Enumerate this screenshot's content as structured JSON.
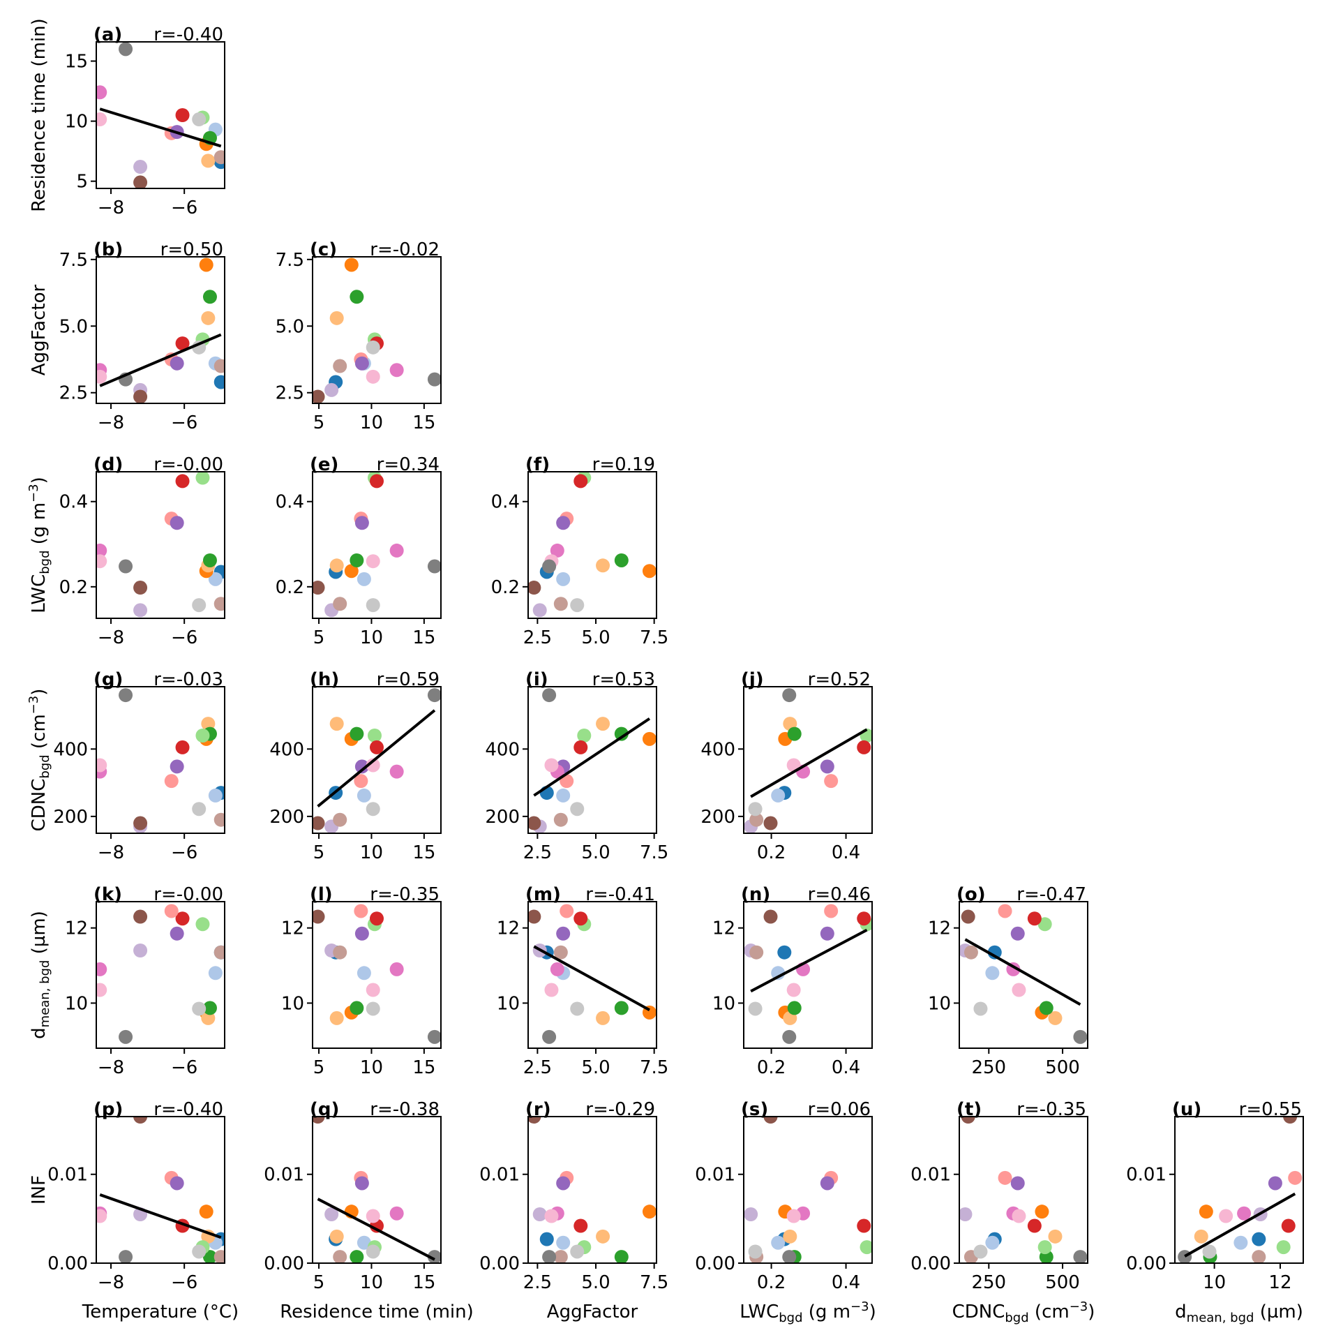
{
  "figure": {
    "variables": [
      {
        "key": "T",
        "label": "Temperature (°C)",
        "ticks": [
          -8,
          -6
        ],
        "tick_labels": [
          "−8",
          "−6"
        ],
        "range": [
          -8.4,
          -4.9
        ]
      },
      {
        "key": "RT",
        "label": "Residence time (min)",
        "ticks": [
          5,
          10,
          15
        ],
        "tick_labels": [
          "5",
          "10",
          "15"
        ],
        "range": [
          4.4,
          16.6
        ]
      },
      {
        "key": "AGG",
        "label": "AggFactor",
        "ticks": [
          2.5,
          5.0,
          7.5
        ],
        "tick_labels": [
          "2.5",
          "5.0",
          "7.5"
        ],
        "range": [
          2.1,
          7.6
        ]
      },
      {
        "key": "LWC",
        "label": "LWC",
        "label_sub": "bgd",
        "label_tail": " (g m",
        "label_sup": "−3",
        "label_end": ")",
        "ticks": [
          0.2,
          0.4
        ],
        "tick_labels": [
          "0.2",
          "0.4"
        ],
        "range": [
          0.126,
          0.47
        ]
      },
      {
        "key": "CDNC",
        "label": "CDNC",
        "label_sub": "bgd",
        "label_tail": " (cm",
        "label_sup": "−3",
        "label_end": ")",
        "ticks": [
          200,
          400
        ],
        "tick_labels": [
          "200",
          "400"
        ],
        "range": [
          150,
          585
        ]
      },
      {
        "key": "DMEAN",
        "label": "d",
        "label_sub": "mean, bgd",
        "label_tail": " (µm)",
        "ticks": [
          10,
          12
        ],
        "tick_labels": [
          "10",
          "12"
        ],
        "range": [
          8.8,
          12.7
        ]
      },
      {
        "key": "INF",
        "label": "INF",
        "ticks": [
          0.0,
          0.01
        ],
        "tick_labels": [
          "0.00",
          "0.01"
        ],
        "range": [
          0.0,
          0.0165
        ]
      }
    ],
    "x_overrides": {
      "CDNC": {
        "ticks": [
          250,
          500
        ],
        "tick_labels": [
          "250",
          "500"
        ]
      },
      "DMEAN": {
        "ticks": [
          10,
          12
        ],
        "tick_labels": [
          "10",
          "12"
        ]
      }
    }
  },
  "chart_data": {
    "type": "scatter",
    "title": "",
    "points": [
      {
        "color": "#1f77b4",
        "T": -5.0,
        "RT": 6.6,
        "AGG": 2.9,
        "LWC": 0.235,
        "CDNC": 270,
        "DMEAN": 11.35,
        "INF": 0.0027
      },
      {
        "color": "#aec7e8",
        "T": -5.15,
        "RT": 9.3,
        "AGG": 3.6,
        "LWC": 0.218,
        "CDNC": 262,
        "DMEAN": 10.8,
        "INF": 0.0023
      },
      {
        "color": "#ff7f0e",
        "T": -5.4,
        "RT": 8.1,
        "AGG": 7.3,
        "LWC": 0.237,
        "CDNC": 430,
        "DMEAN": 9.75,
        "INF": 0.0058
      },
      {
        "color": "#ffbb78",
        "T": -5.35,
        "RT": 6.7,
        "AGG": 5.3,
        "LWC": 0.25,
        "CDNC": 475,
        "DMEAN": 9.6,
        "INF": 0.003
      },
      {
        "color": "#2ca02c",
        "T": -5.3,
        "RT": 8.6,
        "AGG": 6.1,
        "LWC": 0.262,
        "CDNC": 445,
        "DMEAN": 9.87,
        "INF": 0.0007
      },
      {
        "color": "#98df8a",
        "T": -5.5,
        "RT": 10.3,
        "AGG": 4.5,
        "LWC": 0.456,
        "CDNC": 440,
        "DMEAN": 12.1,
        "INF": 0.0018
      },
      {
        "color": "#d62728",
        "T": -6.05,
        "RT": 10.5,
        "AGG": 4.35,
        "LWC": 0.448,
        "CDNC": 405,
        "DMEAN": 12.25,
        "INF": 0.0042
      },
      {
        "color": "#ff9896",
        "T": -6.35,
        "RT": 9.0,
        "AGG": 3.75,
        "LWC": 0.36,
        "CDNC": 305,
        "DMEAN": 12.45,
        "INF": 0.0096
      },
      {
        "color": "#9467bd",
        "T": -6.2,
        "RT": 9.1,
        "AGG": 3.6,
        "LWC": 0.35,
        "CDNC": 348,
        "DMEAN": 11.85,
        "INF": 0.009
      },
      {
        "color": "#c5b0d5",
        "T": -7.2,
        "RT": 6.2,
        "AGG": 2.6,
        "LWC": 0.145,
        "CDNC": 170,
        "DMEAN": 11.4,
        "INF": 0.0055
      },
      {
        "color": "#8c564b",
        "T": -7.2,
        "RT": 4.9,
        "AGG": 2.35,
        "LWC": 0.198,
        "CDNC": 180,
        "DMEAN": 12.3,
        "INF": 0.0165
      },
      {
        "color": "#c49c94",
        "T": -5.0,
        "RT": 7.0,
        "AGG": 3.5,
        "LWC": 0.16,
        "CDNC": 190,
        "DMEAN": 11.35,
        "INF": 0.0007
      },
      {
        "color": "#e377c2",
        "T": -8.3,
        "RT": 12.4,
        "AGG": 3.35,
        "LWC": 0.285,
        "CDNC": 333,
        "DMEAN": 10.9,
        "INF": 0.0056
      },
      {
        "color": "#f7b6d2",
        "T": -8.3,
        "RT": 10.15,
        "AGG": 3.1,
        "LWC": 0.26,
        "CDNC": 352,
        "DMEAN": 10.35,
        "INF": 0.0053
      },
      {
        "color": "#7f7f7f",
        "T": -7.6,
        "RT": 16.0,
        "AGG": 3.0,
        "LWC": 0.248,
        "CDNC": 560,
        "DMEAN": 9.1,
        "INF": 0.0007
      },
      {
        "color": "#c7c7c7",
        "T": -5.6,
        "RT": 10.15,
        "AGG": 4.2,
        "LWC": 0.157,
        "CDNC": 222,
        "DMEAN": 9.85,
        "INF": 0.0013
      }
    ],
    "panels": [
      {
        "id": "(a)",
        "r": "r=-0.40",
        "x": "T",
        "y": "RT",
        "row": 0,
        "col": 0,
        "fit": true
      },
      {
        "id": "(b)",
        "r": "r=0.50",
        "x": "T",
        "y": "AGG",
        "row": 1,
        "col": 0,
        "fit": true
      },
      {
        "id": "(c)",
        "r": "r=-0.02",
        "x": "RT",
        "y": "AGG",
        "row": 1,
        "col": 1,
        "fit": false
      },
      {
        "id": "(d)",
        "r": "r=-0.00",
        "x": "T",
        "y": "LWC",
        "row": 2,
        "col": 0,
        "fit": false
      },
      {
        "id": "(e)",
        "r": "r=0.34",
        "x": "RT",
        "y": "LWC",
        "row": 2,
        "col": 1,
        "fit": false
      },
      {
        "id": "(f)",
        "r": "r=0.19",
        "x": "AGG",
        "y": "LWC",
        "row": 2,
        "col": 2,
        "fit": false
      },
      {
        "id": "(g)",
        "r": "r=-0.03",
        "x": "T",
        "y": "CDNC",
        "row": 3,
        "col": 0,
        "fit": false
      },
      {
        "id": "(h)",
        "r": "r=0.59",
        "x": "RT",
        "y": "CDNC",
        "row": 3,
        "col": 1,
        "fit": true
      },
      {
        "id": "(i)",
        "r": "r=0.53",
        "x": "AGG",
        "y": "CDNC",
        "row": 3,
        "col": 2,
        "fit": true
      },
      {
        "id": "(j)",
        "r": "r=0.52",
        "x": "LWC",
        "y": "CDNC",
        "row": 3,
        "col": 3,
        "fit": true
      },
      {
        "id": "(k)",
        "r": "r=-0.00",
        "x": "T",
        "y": "DMEAN",
        "row": 4,
        "col": 0,
        "fit": false
      },
      {
        "id": "(l)",
        "r": "r=-0.35",
        "x": "RT",
        "y": "DMEAN",
        "row": 4,
        "col": 1,
        "fit": false
      },
      {
        "id": "(m)",
        "r": "r=-0.41",
        "x": "AGG",
        "y": "DMEAN",
        "row": 4,
        "col": 2,
        "fit": true
      },
      {
        "id": "(n)",
        "r": "r=0.46",
        "x": "LWC",
        "y": "DMEAN",
        "row": 4,
        "col": 3,
        "fit": true
      },
      {
        "id": "(o)",
        "r": "r=-0.47",
        "x": "CDNC",
        "y": "DMEAN",
        "row": 4,
        "col": 4,
        "fit": true
      },
      {
        "id": "(p)",
        "r": "r=-0.40",
        "x": "T",
        "y": "INF",
        "row": 5,
        "col": 0,
        "fit": true
      },
      {
        "id": "(q)",
        "r": "r=-0.38",
        "x": "RT",
        "y": "INF",
        "row": 5,
        "col": 1,
        "fit": true
      },
      {
        "id": "(r)",
        "r": "r=-0.29",
        "x": "AGG",
        "y": "INF",
        "row": 5,
        "col": 2,
        "fit": false
      },
      {
        "id": "(s)",
        "r": "r=0.06",
        "x": "LWC",
        "y": "INF",
        "row": 5,
        "col": 3,
        "fit": false
      },
      {
        "id": "(t)",
        "r": "r=-0.35",
        "x": "CDNC",
        "y": "INF",
        "row": 5,
        "col": 4,
        "fit": false
      },
      {
        "id": "(u)",
        "r": "r=0.55",
        "x": "DMEAN",
        "y": "INF",
        "row": 5,
        "col": 5,
        "fit": true
      }
    ]
  }
}
